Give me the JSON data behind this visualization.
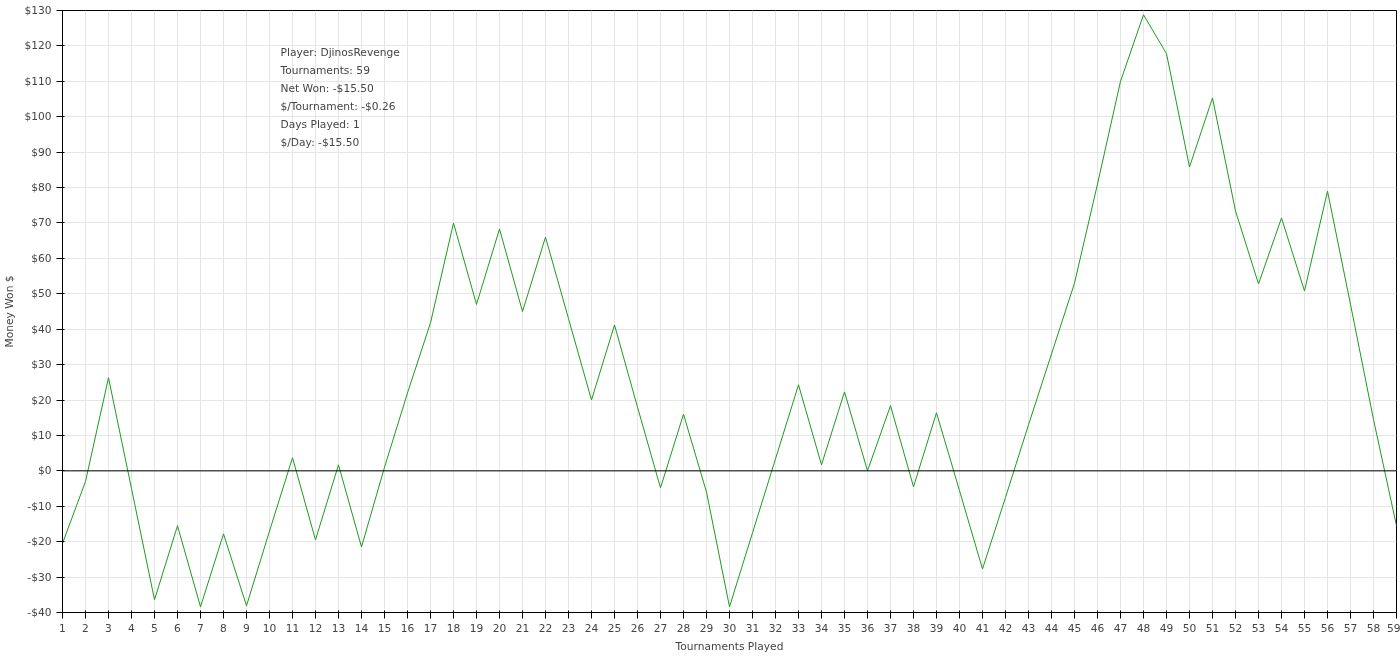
{
  "chart_data": {
    "type": "line",
    "xlabel": "Tournaments Played",
    "ylabel": "Money Won $",
    "x": [
      1,
      2,
      3,
      4,
      5,
      6,
      7,
      8,
      9,
      10,
      11,
      12,
      13,
      14,
      15,
      16,
      17,
      18,
      19,
      20,
      21,
      22,
      23,
      24,
      25,
      26,
      27,
      28,
      29,
      30,
      31,
      32,
      33,
      34,
      35,
      36,
      37,
      38,
      39,
      40,
      41,
      42,
      43,
      44,
      45,
      46,
      47,
      48,
      49,
      50,
      51,
      52,
      53,
      54,
      55,
      56,
      57,
      58,
      59
    ],
    "series": [
      {
        "color": "#1f9a1f",
        "values": [
          -20.5,
          -3,
          26.3,
          -5,
          -36.4,
          -15.5,
          -38.4,
          -17.8,
          -38.1,
          -17,
          3.7,
          -19.5,
          1.7,
          -21.5,
          1,
          22,
          41.8,
          70,
          47,
          68.3,
          45,
          66,
          43,
          20,
          41.2,
          18,
          -4.8,
          16,
          -6,
          -38.4,
          -17.5,
          3.4,
          24.3,
          1.7,
          22.3,
          0,
          18.4,
          -4.5,
          16.4,
          -5.6,
          -27.7,
          -7.5,
          13,
          33,
          53,
          81,
          110,
          128.8,
          117.8,
          85.8,
          105.3,
          73.4,
          52.8,
          71.4,
          50.8,
          79,
          47,
          14.5,
          -15.5
        ]
      }
    ],
    "xlim": [
      1,
      59
    ],
    "xticks": [
      1,
      2,
      3,
      4,
      5,
      6,
      7,
      8,
      9,
      10,
      11,
      12,
      13,
      14,
      15,
      16,
      17,
      18,
      19,
      20,
      21,
      22,
      23,
      24,
      25,
      26,
      27,
      28,
      29,
      30,
      31,
      32,
      33,
      34,
      35,
      36,
      37,
      38,
      39,
      40,
      41,
      42,
      43,
      44,
      45,
      46,
      47,
      48,
      49,
      50,
      51,
      52,
      53,
      54,
      55,
      56,
      57,
      58,
      59
    ],
    "ylim": [
      -40,
      130
    ],
    "yticks": [
      {
        "value": -40,
        "label": "-$40"
      },
      {
        "value": -30,
        "label": "-$30"
      },
      {
        "value": -20,
        "label": "-$20"
      },
      {
        "value": -10,
        "label": "-$10"
      },
      {
        "value": 0,
        "label": "$0"
      },
      {
        "value": 10,
        "label": "$10"
      },
      {
        "value": 20,
        "label": "$20"
      },
      {
        "value": 30,
        "label": "$30"
      },
      {
        "value": 40,
        "label": "$40"
      },
      {
        "value": 50,
        "label": "$50"
      },
      {
        "value": 60,
        "label": "$60"
      },
      {
        "value": 70,
        "label": "$70"
      },
      {
        "value": 80,
        "label": "$80"
      },
      {
        "value": 90,
        "label": "$90"
      },
      {
        "value": 100,
        "label": "$100"
      },
      {
        "value": 110,
        "label": "$110"
      },
      {
        "value": 120,
        "label": "$120"
      },
      {
        "value": 130,
        "label": "$130"
      }
    ],
    "ref_lines": [
      {
        "axis": "y",
        "value": 0,
        "color": "#000000"
      }
    ],
    "grid": true,
    "marker": "none",
    "line_style": "solid",
    "annotations": [
      "Player: DjinosRevenge",
      "Tournaments: 59",
      "Net Won: -$15.50",
      "$/Tournament: -$0.26",
      "Days Played: 1",
      "$/Day: -$15.50"
    ]
  }
}
